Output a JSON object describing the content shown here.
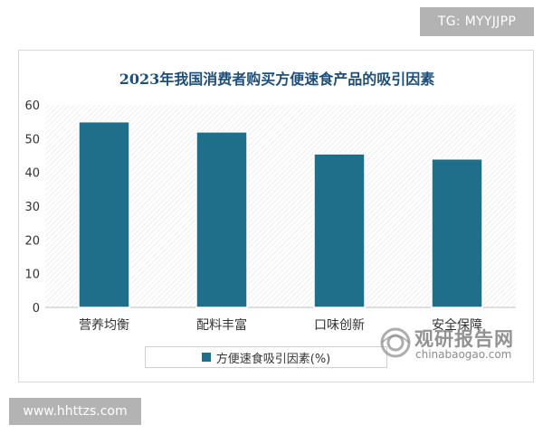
{
  "badges": {
    "top": "TG: MYYJJPP",
    "bottom": "www.hhttzs.com"
  },
  "watermark": {
    "chinese": "观研报告网",
    "english": "chinabaogao.com"
  },
  "chart_data": {
    "type": "bar",
    "title": "2023年我国消费者购买方便速食产品的吸引因素",
    "categories": [
      "营养均衡",
      "配料丰富",
      "口味创新",
      "安全保障"
    ],
    "series": [
      {
        "name": "方便速食吸引因素(%)",
        "values": [
          55,
          52,
          45.5,
          44
        ]
      }
    ],
    "yticks": [
      0,
      10,
      20,
      30,
      40,
      50,
      60
    ],
    "ylim": [
      0,
      60
    ],
    "xlabel": "",
    "ylabel": "",
    "legend_position": "bottom",
    "grid": false,
    "colors": {
      "bar": "#1f6f8b",
      "title": "#1f4e79"
    }
  }
}
